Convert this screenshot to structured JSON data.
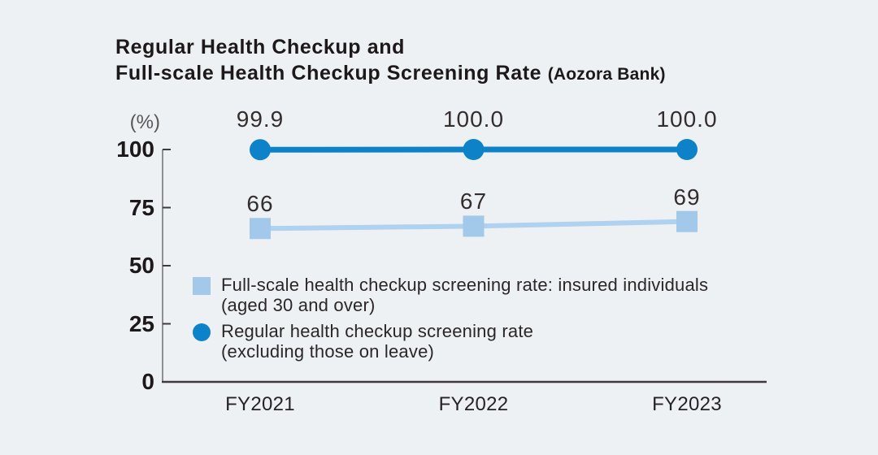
{
  "title": {
    "line1": "Regular Health Checkup and",
    "line2": "Full-scale Health Checkup Screening Rate",
    "suffix": "(Aozora Bank)"
  },
  "axis": {
    "unit": "(%)",
    "yticks": [
      100,
      75,
      50,
      25,
      0
    ],
    "ylim": [
      0,
      100
    ]
  },
  "chart_data": {
    "type": "line",
    "title": "Regular Health Checkup and Full-scale Health Checkup Screening Rate (Aozora Bank)",
    "categories": [
      "FY2021",
      "FY2022",
      "FY2023"
    ],
    "series": [
      {
        "name": "Full-scale health checkup screening rate: insured individuals (aged 30 and over)",
        "values": [
          66,
          67,
          69
        ],
        "labels": [
          "66",
          "67",
          "69"
        ],
        "marker": "square",
        "color": "#a2c8ea",
        "line_color": "#aed2ef"
      },
      {
        "name": "Regular health checkup screening rate (excluding those on leave)",
        "values": [
          99.9,
          100.0,
          100.0
        ],
        "labels": [
          "99.9",
          "100.0",
          "100.0"
        ],
        "marker": "circle",
        "color": "#0d82c8",
        "line_color": "#0d82c8"
      }
    ],
    "ylabel": "(%)",
    "ylim": [
      0,
      100
    ],
    "grid": false,
    "legend_position": "inside-lower-left"
  },
  "legend": {
    "items": [
      {
        "marker": "square-icon",
        "color": "#a2c8ea",
        "line1": "Full-scale health checkup screening rate: insured individuals",
        "line2": "(aged 30 and over)"
      },
      {
        "marker": "circle-icon",
        "color": "#0d82c8",
        "line1": "Regular health checkup screening rate",
        "line2": "(excluding those on leave)"
      }
    ]
  },
  "colors": {
    "background": "#edf1f4",
    "y_axis_line": "#8f8f90",
    "x_axis_line": "#403a3b",
    "tick": "#403a3b",
    "title_text": "#1d1819",
    "value_text": "#332d2e",
    "unit_text": "#5a5758",
    "series_light": "#a2c8ea",
    "series_dark": "#0d82c8"
  }
}
